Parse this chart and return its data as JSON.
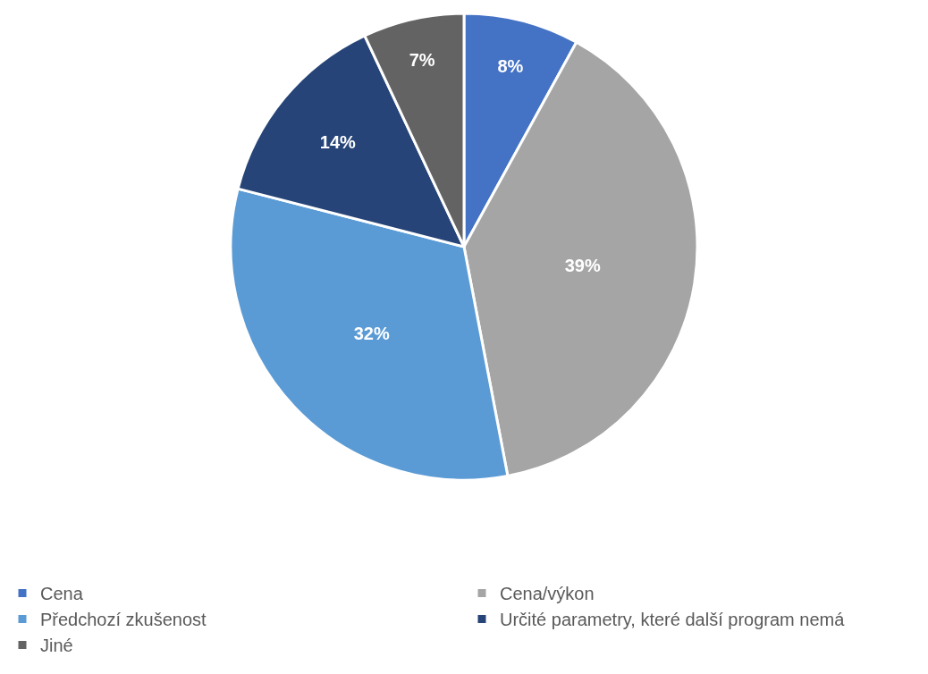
{
  "chart_data": {
    "type": "pie",
    "categories": [
      "Cena",
      "Cena/výkon",
      "Předchozí zkušenost",
      "Určité parametry, které další program nemá",
      "Jiné"
    ],
    "values": [
      8,
      39,
      32,
      14,
      7
    ],
    "colors": [
      "#4472c4",
      "#a5a5a5",
      "#5b9bd5",
      "#264478",
      "#636363"
    ],
    "value_labels": [
      "8%",
      "39%",
      "32%",
      "14%",
      "7%"
    ],
    "legend": "bottom"
  }
}
